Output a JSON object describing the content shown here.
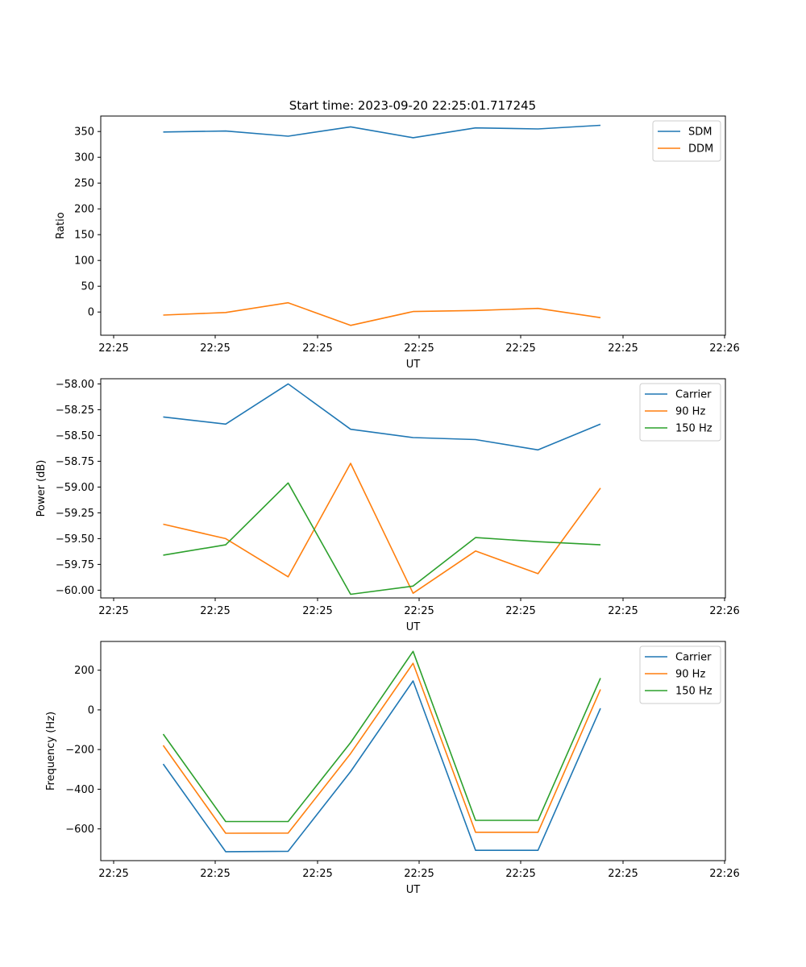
{
  "figure_title": "Start time: 2023-09-20 22:25:01.717245",
  "colors": {
    "blue": "#1f77b4",
    "orange": "#ff7f0e",
    "green": "#2ca02c"
  },
  "chart_data": [
    {
      "type": "line",
      "title": "Start time: 2023-09-20 22:25:01.717245",
      "xlabel": "UT",
      "ylabel": "Ratio",
      "x_ticks": [
        "22:25",
        "22:25",
        "22:25",
        "22:25",
        "22:25",
        "22:25",
        "22:25"
      ],
      "x_tick_end": "22:26",
      "x": [
        1,
        2,
        3,
        4,
        5,
        6,
        7,
        8
      ],
      "xlim": [
        0,
        10
      ],
      "ylim": [
        -45,
        380
      ],
      "y_ticks": [
        0,
        50,
        100,
        150,
        200,
        250,
        300,
        350
      ],
      "legend": "top-right",
      "series": [
        {
          "name": "SDM",
          "color": "#1f77b4",
          "values": [
            349,
            351,
            341,
            359,
            338,
            357,
            355,
            362
          ]
        },
        {
          "name": "DDM",
          "color": "#ff7f0e",
          "values": [
            -6,
            -1,
            18,
            -26,
            1,
            3,
            7,
            -11
          ]
        }
      ]
    },
    {
      "type": "line",
      "xlabel": "UT",
      "ylabel": "Power (dB)",
      "x_ticks": [
        "22:25",
        "22:25",
        "22:25",
        "22:25",
        "22:25",
        "22:25",
        "22:25"
      ],
      "x_tick_end": "22:26",
      "x": [
        1,
        2,
        3,
        4,
        5,
        6,
        7,
        8
      ],
      "xlim": [
        0,
        10
      ],
      "ylim": [
        -60.075,
        -57.95
      ],
      "y_ticks": [
        -60.0,
        -59.75,
        -59.5,
        -59.25,
        -59.0,
        -58.75,
        -58.5,
        -58.25,
        -58.0
      ],
      "legend": "top-right",
      "series": [
        {
          "name": "Carrier",
          "color": "#1f77b4",
          "values": [
            -58.32,
            -58.39,
            -58.0,
            -58.44,
            -58.52,
            -58.54,
            -58.64,
            -58.39
          ]
        },
        {
          "name": "90 Hz",
          "color": "#ff7f0e",
          "values": [
            -59.36,
            -59.5,
            -59.87,
            -58.77,
            -60.03,
            -59.62,
            -59.84,
            -59.01
          ]
        },
        {
          "name": "150 Hz",
          "color": "#2ca02c",
          "values": [
            -59.66,
            -59.56,
            -58.96,
            -60.04,
            -59.96,
            -59.49,
            -59.53,
            -59.56
          ]
        }
      ]
    },
    {
      "type": "line",
      "xlabel": "UT",
      "ylabel": "Frequency (Hz)",
      "x_ticks": [
        "22:25",
        "22:25",
        "22:25",
        "22:25",
        "22:25",
        "22:25",
        "22:25"
      ],
      "x_tick_end": "22:26",
      "x": [
        1,
        2,
        3,
        4,
        5,
        6,
        7,
        8
      ],
      "xlim": [
        0,
        10
      ],
      "ylim": [
        -760,
        345
      ],
      "y_ticks": [
        -600,
        -400,
        -200,
        0,
        200
      ],
      "legend": "top-right",
      "series": [
        {
          "name": "Carrier",
          "color": "#1f77b4",
          "values": [
            -273,
            -715,
            -713,
            -311,
            146,
            -708,
            -708,
            8
          ]
        },
        {
          "name": "90 Hz",
          "color": "#ff7f0e",
          "values": [
            -179,
            -622,
            -621,
            -220,
            235,
            -617,
            -617,
            103
          ]
        },
        {
          "name": "150 Hz",
          "color": "#2ca02c",
          "values": [
            -122,
            -563,
            -563,
            -165,
            295,
            -557,
            -557,
            160
          ]
        }
      ]
    }
  ]
}
